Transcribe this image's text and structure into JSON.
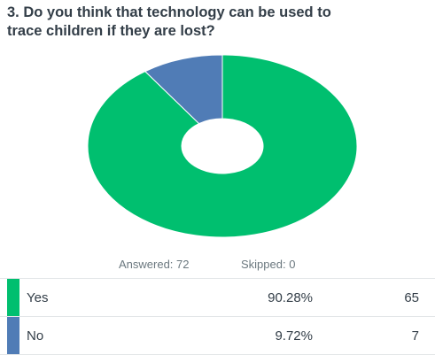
{
  "question": {
    "line1": "3. Do you think that technology can be used to",
    "line2": "trace children if they are lost?"
  },
  "stats": {
    "answered": "Answered: 72",
    "skipped": "Skipped: 0"
  },
  "colors": {
    "yes": "#00bf6f",
    "no": "#507cb6",
    "text": "#333e48",
    "muted": "#6b787f"
  },
  "rows": [
    {
      "label": "Yes",
      "pct": "90.28%",
      "count": "65"
    },
    {
      "label": "No",
      "pct": "9.72%",
      "count": "7"
    }
  ],
  "chart_data": {
    "type": "pie",
    "style": "donut",
    "categories": [
      "Yes",
      "No"
    ],
    "values": [
      90.28,
      9.72
    ],
    "counts": [
      65,
      7
    ],
    "colors": [
      "#00bf6f",
      "#507cb6"
    ],
    "title": "3. Do you think that technology can be used to trace children if they are lost?"
  }
}
